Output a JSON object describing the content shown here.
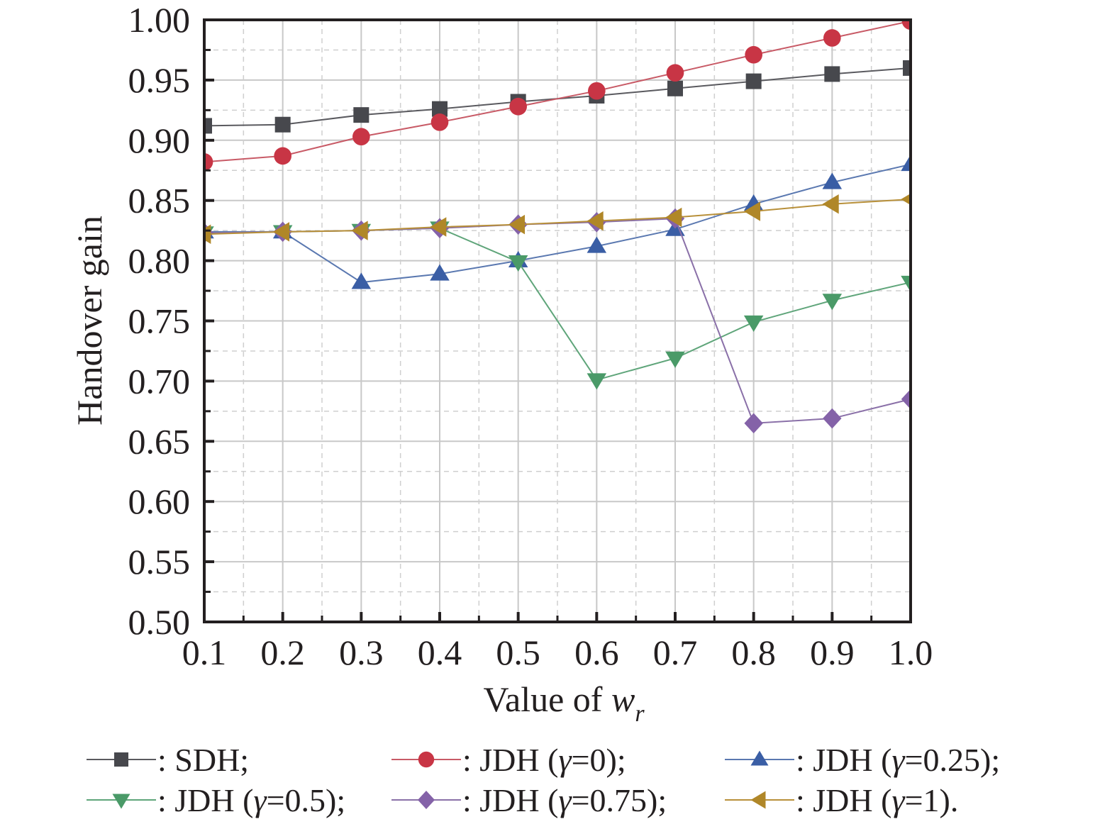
{
  "chart_data": {
    "type": "line",
    "title": "",
    "xlabel": "Value of w_r",
    "xlabel_parts": {
      "prefix": "Value of ",
      "var": "w",
      "sub": "r"
    },
    "ylabel": "Handover gain",
    "x": [
      0.1,
      0.2,
      0.3,
      0.4,
      0.5,
      0.6,
      0.7,
      0.8,
      0.9,
      1.0
    ],
    "xlim": [
      0.1,
      1.0
    ],
    "ylim": [
      0.5,
      1.0
    ],
    "xticks": [
      "0.1",
      "0.2",
      "0.3",
      "0.4",
      "0.5",
      "0.6",
      "0.7",
      "0.8",
      "0.9",
      "1.0"
    ],
    "yticks": [
      "0.50",
      "0.55",
      "0.60",
      "0.65",
      "0.70",
      "0.75",
      "0.80",
      "0.85",
      "0.90",
      "0.95",
      "1.00"
    ],
    "grid": true,
    "legend_position": "bottom",
    "series": [
      {
        "name": "SDH",
        "legend_label": ": SDH;",
        "marker": "square",
        "color": "#47484d",
        "line_color": "#5a5a5f",
        "values": [
          0.912,
          0.913,
          0.921,
          0.926,
          0.932,
          0.937,
          0.943,
          0.949,
          0.955,
          0.96
        ]
      },
      {
        "name": "JDH (γ=0)",
        "legend_label": ": JDH (γ=0);",
        "marker": "circle",
        "color": "#c83545",
        "line_color": "#c85a66",
        "values": [
          0.882,
          0.887,
          0.903,
          0.915,
          0.928,
          0.941,
          0.956,
          0.971,
          0.985,
          0.999
        ]
      },
      {
        "name": "JDH (γ=0.25)",
        "legend_label": ": JDH (γ=0.25);",
        "marker": "triangle-up",
        "color": "#3a5ea5",
        "line_color": "#5a78b0",
        "values": [
          0.824,
          0.824,
          0.782,
          0.789,
          0.8,
          0.812,
          0.826,
          0.847,
          0.865,
          0.88
        ]
      },
      {
        "name": "JDH (γ=0.5)",
        "legend_label": ": JDH (γ=0.5);",
        "marker": "triangle-down",
        "color": "#4a9a68",
        "line_color": "#5fa57a",
        "values": [
          0.823,
          0.824,
          0.825,
          0.827,
          0.799,
          0.701,
          0.719,
          0.749,
          0.767,
          0.782
        ]
      },
      {
        "name": "JDH (γ=0.75)",
        "legend_label": ": JDH (γ=0.75);",
        "marker": "diamond",
        "color": "#8462a8",
        "line_color": "#8a70a8",
        "values": [
          0.823,
          0.824,
          0.825,
          0.827,
          0.83,
          0.832,
          0.835,
          0.665,
          0.669,
          0.685
        ]
      },
      {
        "name": "JDH (γ=1)",
        "legend_label": ": JDH (γ=1).",
        "marker": "triangle-left",
        "color": "#b08728",
        "line_color": "#b8903a",
        "values": [
          0.822,
          0.824,
          0.825,
          0.828,
          0.83,
          0.833,
          0.836,
          0.841,
          0.847,
          0.851
        ]
      }
    ]
  }
}
